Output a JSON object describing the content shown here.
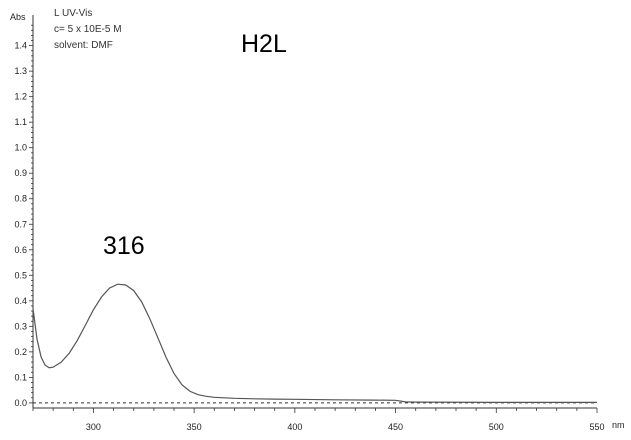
{
  "chart_data": {
    "type": "line",
    "title": "H2L",
    "info_lines": [
      "L UV-Vis",
      "c= 5 x 10E-5 M",
      "solvent: DMF"
    ],
    "peak_label": "316",
    "xlabel": "nm",
    "ylabel": "Abs",
    "xlim": [
      270,
      550
    ],
    "ylim": [
      -0.02,
      1.52
    ],
    "x_ticks": [
      300,
      350,
      400,
      450,
      500,
      550
    ],
    "y_ticks": [
      "0.0",
      "0.1",
      "0.2",
      "0.3",
      "0.4",
      "0.5",
      "0.6",
      "0.7",
      "0.8",
      "0.9",
      "1.0",
      "1.1",
      "1.2",
      "1.3",
      "1.4"
    ],
    "baseline_y": 0,
    "grid": false,
    "series": [
      {
        "x": [
          270,
          272,
          274,
          276,
          278,
          280,
          284,
          288,
          292,
          296,
          300,
          304,
          308,
          312,
          316,
          320,
          324,
          328,
          332,
          336,
          340,
          344,
          348,
          352,
          356,
          360,
          365,
          370,
          380,
          390,
          400,
          420,
          440,
          450,
          455,
          460,
          500,
          550
        ],
        "y": [
          0.37,
          0.25,
          0.18,
          0.148,
          0.138,
          0.14,
          0.16,
          0.195,
          0.245,
          0.305,
          0.365,
          0.415,
          0.45,
          0.465,
          0.462,
          0.44,
          0.395,
          0.33,
          0.255,
          0.18,
          0.115,
          0.07,
          0.045,
          0.032,
          0.026,
          0.022,
          0.02,
          0.018,
          0.016,
          0.015,
          0.014,
          0.012,
          0.011,
          0.01,
          0.004,
          0.003,
          0.002,
          0.002
        ],
        "color": "#555555"
      }
    ]
  }
}
